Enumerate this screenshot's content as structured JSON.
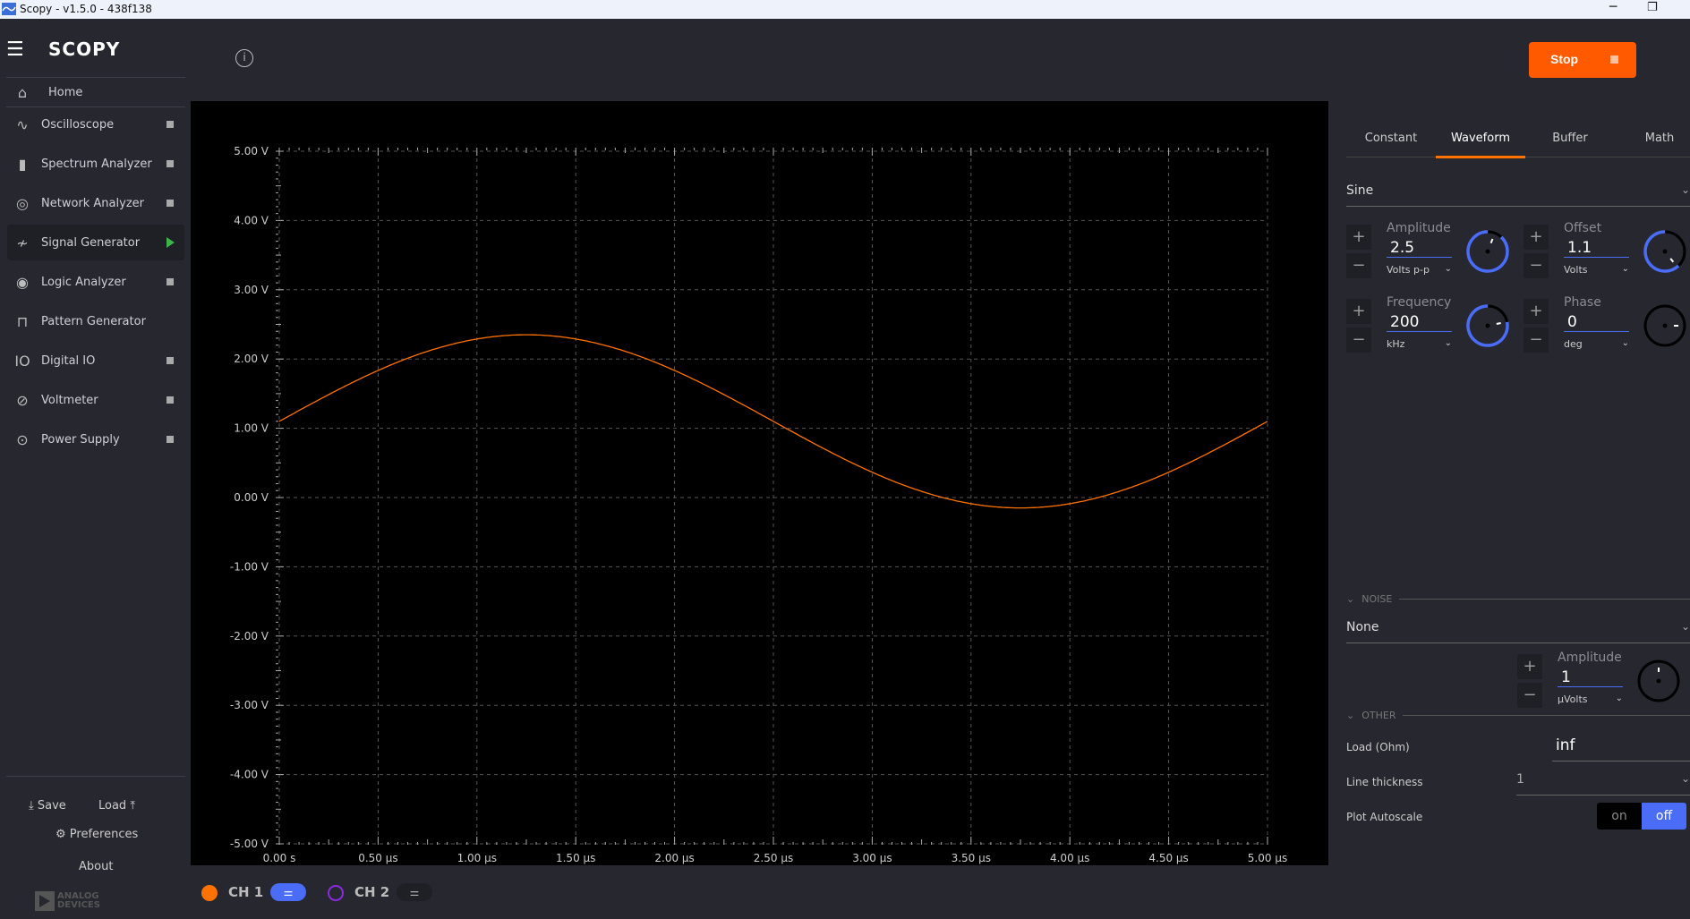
{
  "window": {
    "title": "Scopy - v1.5.0 - 438f138",
    "logo": "SCOPY"
  },
  "sidebar": {
    "items": [
      {
        "label": "Home",
        "icon": "home-icon",
        "glyph": "⌂",
        "status": ""
      },
      {
        "label": "Oscilloscope",
        "icon": "oscilloscope-icon",
        "glyph": "∿",
        "status": "stopped"
      },
      {
        "label": "Spectrum Analyzer",
        "icon": "spectrum-icon",
        "glyph": "▮",
        "status": "stopped"
      },
      {
        "label": "Network Analyzer",
        "icon": "network-icon",
        "glyph": "◎",
        "status": "stopped"
      },
      {
        "label": "Signal Generator",
        "icon": "signal-generator-icon",
        "glyph": "≁",
        "status": "running"
      },
      {
        "label": "Logic Analyzer",
        "icon": "logic-icon",
        "glyph": "◉",
        "status": "stopped"
      },
      {
        "label": "Pattern Generator",
        "icon": "pattern-icon",
        "glyph": "⊓",
        "status": ""
      },
      {
        "label": "Digital IO",
        "icon": "digital-io-icon",
        "glyph": "IO",
        "status": "stopped"
      },
      {
        "label": "Voltmeter",
        "icon": "voltmeter-icon",
        "glyph": "⊘",
        "status": "stopped"
      },
      {
        "label": "Power Supply",
        "icon": "power-icon",
        "glyph": "⊙",
        "status": "stopped"
      }
    ],
    "save": "Save",
    "load": "Load",
    "preferences": "Preferences",
    "about": "About",
    "brand": "ANALOG DEVICES"
  },
  "toolbar": {
    "stop_label": "Stop",
    "stop_color": "#ff5a00"
  },
  "panel": {
    "tabs": [
      "Constant",
      "Waveform",
      "Buffer",
      "Math"
    ],
    "active_tab": "Waveform",
    "waveform_type": "Sine",
    "amplitude": {
      "label": "Amplitude",
      "value": "2.5",
      "unit": "Volts p-p"
    },
    "offset": {
      "label": "Offset",
      "value": "1.1",
      "unit": "Volts"
    },
    "frequency": {
      "label": "Frequency",
      "value": "200",
      "unit": "kHz"
    },
    "phase": {
      "label": "Phase",
      "value": "0",
      "unit": "deg"
    },
    "noise": {
      "section": "NOISE",
      "type": "None",
      "amplitude": {
        "label": "Amplitude",
        "value": "1",
        "unit": "μVolts"
      }
    },
    "other": {
      "section": "OTHER",
      "load_label": "Load (Ohm)",
      "load_value": "inf",
      "thickness_label": "Line thickness",
      "thickness_value": "1",
      "autoscale_label": "Plot Autoscale",
      "on": "on",
      "off": "off",
      "autoscale_state": "off"
    }
  },
  "channels": [
    {
      "label": "CH 1",
      "color": "#ff7200",
      "enabled": true
    },
    {
      "label": "CH 2",
      "color": "#8a2be2",
      "enabled": false
    }
  ],
  "chart_data": {
    "type": "line",
    "xlim": [
      0,
      5
    ],
    "ylim": [
      -5,
      5
    ],
    "xticks": [
      "0.00 s",
      "0.50 μs",
      "1.00 μs",
      "1.50 μs",
      "2.00 μs",
      "2.50 μs",
      "3.00 μs",
      "3.50 μs",
      "4.00 μs",
      "4.50 μs",
      "5.00 μs"
    ],
    "yticks": [
      "5.00 V",
      "4.00 V",
      "3.00 V",
      "2.00 V",
      "1.00 V",
      "0.00 V",
      "-1.00 V",
      "-2.00 V",
      "-3.00 V",
      "-4.00 V",
      "-5.00 V"
    ],
    "grid": true,
    "series": [
      {
        "color": "#ff7200",
        "function": "sine",
        "amplitude_vpp": 2.5,
        "offset_v": 1.1,
        "frequency_khz": 200,
        "phase_deg": 0
      }
    ]
  }
}
